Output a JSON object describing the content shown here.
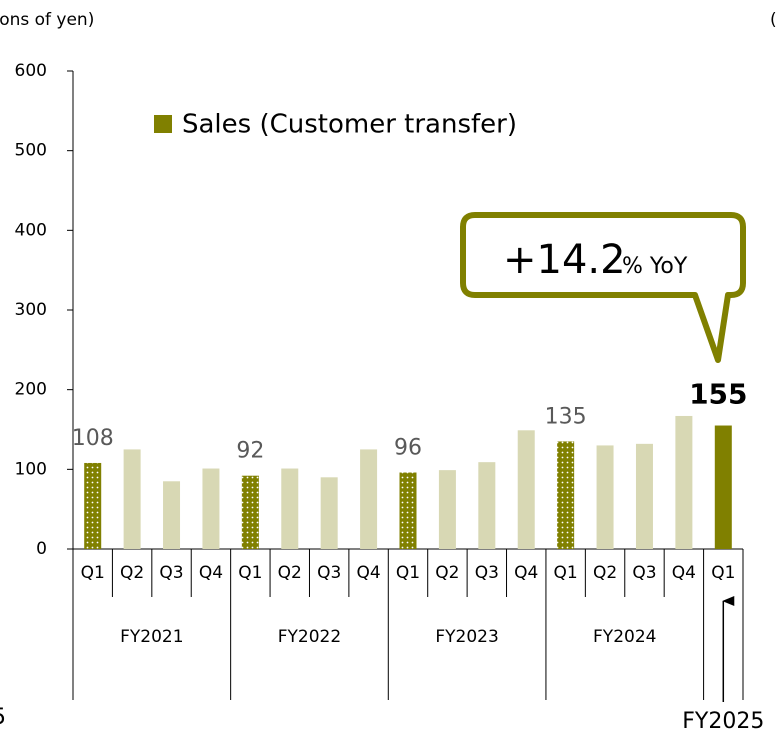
{
  "chart_data": {
    "type": "bar",
    "y_axis_label": "(Billions of yen)",
    "corner_marks": [
      "(",
      "5"
    ],
    "legend": "Sales (Customer transfer)",
    "legend_color": "#808000",
    "annotation": {
      "value": "+14.2",
      "unit": "% YoY",
      "color": "#808000"
    },
    "categories": [
      "Q1",
      "Q2",
      "Q3",
      "Q4",
      "Q1",
      "Q2",
      "Q3",
      "Q4",
      "Q1",
      "Q2",
      "Q3",
      "Q4",
      "Q1",
      "Q2",
      "Q3",
      "Q4",
      "Q1"
    ],
    "groups": [
      "FY2021",
      null,
      null,
      null,
      "FY2022",
      null,
      null,
      null,
      "FY2023",
      null,
      null,
      null,
      "FY2024",
      null,
      null,
      null,
      "FY2025"
    ],
    "values": [
      108,
      125,
      85,
      101,
      92,
      101,
      90,
      125,
      96,
      99,
      109,
      149,
      135,
      130,
      132,
      167,
      155
    ],
    "value_labels": [
      "108",
      null,
      null,
      null,
      "92",
      null,
      null,
      null,
      "96",
      null,
      null,
      null,
      "135",
      null,
      null,
      null,
      "155"
    ],
    "colors": [
      "#808000",
      "#d8d8b4",
      "#d8d8b4",
      "#d8d8b4",
      "#808000",
      "#d8d8b4",
      "#d8d8b4",
      "#d8d8b4",
      "#808000",
      "#d8d8b4",
      "#d8d8b4",
      "#d8d8b4",
      "#808000",
      "#d8d8b4",
      "#d8d8b4",
      "#d8d8b4",
      "#808000"
    ],
    "dotted": [
      true,
      false,
      false,
      false,
      true,
      false,
      false,
      false,
      true,
      false,
      false,
      false,
      true,
      false,
      false,
      false,
      false
    ],
    "ylim": [
      0,
      600
    ],
    "yticks": [
      0,
      100,
      200,
      300,
      400,
      500,
      600
    ],
    "grid": false
  }
}
